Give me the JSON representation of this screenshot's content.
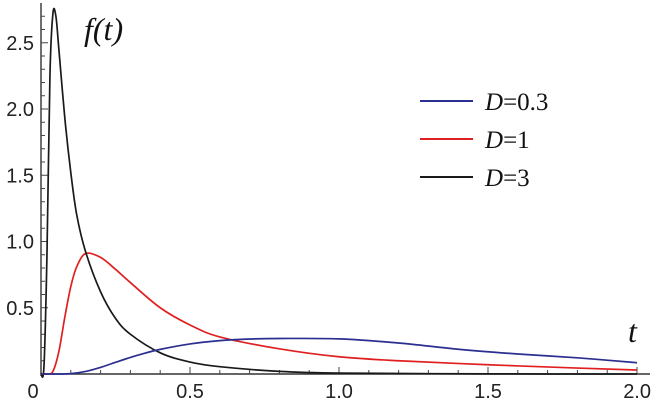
{
  "chart_data": {
    "type": "line",
    "ylabel": "f(t)",
    "xlabel": "t",
    "xlim": [
      0,
      2.0
    ],
    "ylim": [
      0,
      2.8
    ],
    "x_ticks": [
      {
        "value": 0,
        "label": "0"
      },
      {
        "value": 0.5,
        "label": "0.5"
      },
      {
        "value": 1.0,
        "label": "1.0"
      },
      {
        "value": 1.5,
        "label": "1.5"
      },
      {
        "value": 2.0,
        "label": "2.0"
      }
    ],
    "y_ticks": [
      {
        "value": 0.5,
        "label": "0.5"
      },
      {
        "value": 1.0,
        "label": "1.0"
      },
      {
        "value": 1.5,
        "label": "1.5"
      },
      {
        "value": 2.0,
        "label": "2.0"
      },
      {
        "value": 2.5,
        "label": "2.5"
      }
    ],
    "grid": false,
    "legend_position": "upper-right",
    "series": [
      {
        "name": "D=0.3",
        "var": "D",
        "value": "0.3",
        "color": "#2b2f8f",
        "x": [
          0,
          0.05,
          0.1,
          0.15,
          0.2,
          0.25,
          0.3,
          0.35,
          0.4,
          0.5,
          0.6,
          0.7,
          0.8,
          1.0,
          1.2,
          1.4,
          1.6,
          1.8,
          2.0
        ],
        "y": [
          0,
          0.0,
          0.003,
          0.019,
          0.05,
          0.088,
          0.125,
          0.158,
          0.186,
          0.227,
          0.252,
          0.264,
          0.268,
          0.265,
          0.234,
          0.187,
          0.151,
          0.122,
          0.085
        ]
      },
      {
        "name": "D=1",
        "var": "D",
        "value": "1",
        "color": "#e02020",
        "x": [
          0,
          0.02,
          0.04,
          0.06,
          0.08,
          0.1,
          0.12,
          0.15,
          0.2,
          0.25,
          0.3,
          0.4,
          0.5,
          0.6,
          0.8,
          1.0,
          1.2,
          1.5,
          1.8,
          2.0
        ],
        "y": [
          0,
          0.0,
          0.02,
          0.17,
          0.43,
          0.66,
          0.81,
          0.91,
          0.88,
          0.79,
          0.69,
          0.5,
          0.37,
          0.28,
          0.19,
          0.13,
          0.1,
          0.07,
          0.045,
          0.03
        ]
      },
      {
        "name": "D=3",
        "var": "D",
        "value": "3",
        "color": "#1a1a1a",
        "x": [
          0,
          0.01,
          0.02,
          0.03,
          0.04,
          0.05,
          0.06,
          0.08,
          0.1,
          0.12,
          0.15,
          0.2,
          0.25,
          0.3,
          0.4,
          0.5,
          0.6,
          0.8,
          1.0,
          1.5,
          2.0
        ],
        "y": [
          0,
          0.06,
          0.9,
          2.25,
          2.72,
          2.7,
          2.45,
          1.93,
          1.52,
          1.2,
          0.92,
          0.62,
          0.42,
          0.3,
          0.16,
          0.09,
          0.055,
          0.02,
          0.007,
          0.001,
          0.0
        ]
      }
    ]
  }
}
